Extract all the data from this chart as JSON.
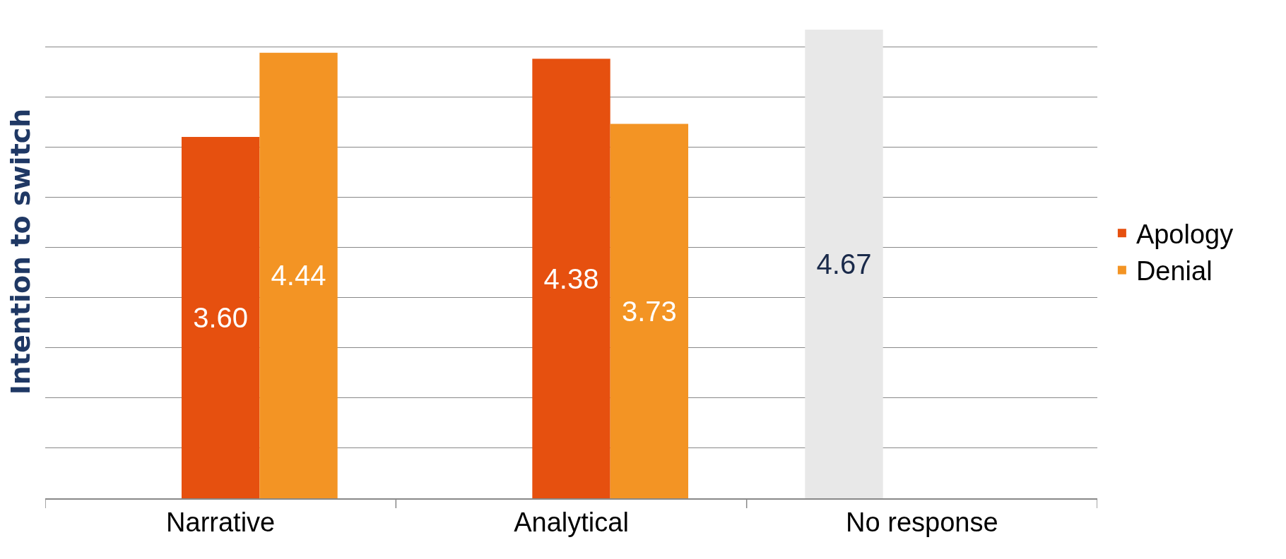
{
  "chart_data": {
    "type": "bar",
    "ylabel": "Intention to switch",
    "categories": [
      "Narrative",
      "Analytical",
      "No response"
    ],
    "series": [
      {
        "color": "#e8e8e8",
        "values": [
          null,
          null,
          4.67
        ],
        "value_labels": [
          null,
          null,
          "4.67"
        ]
      },
      {
        "name": "Apology",
        "color": "#e6500f",
        "values": [
          3.6,
          4.38,
          null
        ],
        "value_labels": [
          "3.60",
          "4.38",
          null
        ]
      },
      {
        "name": "Denial",
        "color": "#f39424",
        "values": [
          4.44,
          3.73,
          null
        ],
        "value_labels": [
          "4.44",
          "3.73",
          null
        ]
      }
    ],
    "tick_labels": "x",
    "grid": "y",
    "legend": "right"
  }
}
